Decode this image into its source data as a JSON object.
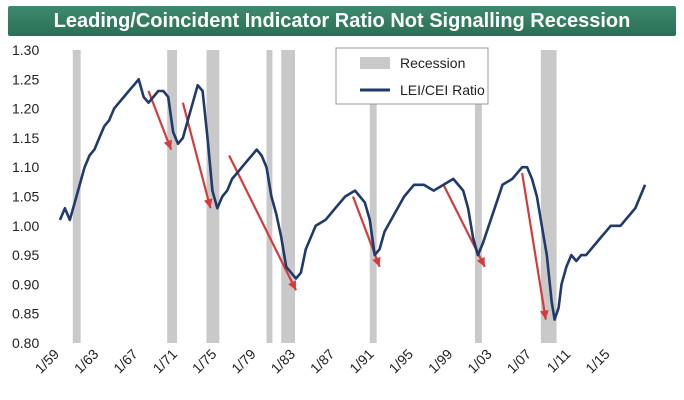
{
  "chart_data": {
    "type": "line",
    "title": "Leading/Coincident Indicator Ratio Not Signalling Recession",
    "ylim": [
      0.8,
      1.3
    ],
    "y_ticks": [
      "1.30",
      "1.25",
      "1.20",
      "1.15",
      "1.10",
      "1.05",
      "1.00",
      "0.95",
      "0.90",
      "0.85",
      "0.80"
    ],
    "x_range": [
      1959.0,
      2019.0
    ],
    "x_ticks": [
      {
        "label": "1/59",
        "x": 1959.0
      },
      {
        "label": "1/63",
        "x": 1963.0
      },
      {
        "label": "1/67",
        "x": 1967.0
      },
      {
        "label": "1/71",
        "x": 1971.0
      },
      {
        "label": "1/75",
        "x": 1975.0
      },
      {
        "label": "1/79",
        "x": 1979.0
      },
      {
        "label": "1/83",
        "x": 1983.0
      },
      {
        "label": "1/87",
        "x": 1987.0
      },
      {
        "label": "1/91",
        "x": 1991.0
      },
      {
        "label": "1/95",
        "x": 1995.0
      },
      {
        "label": "1/99",
        "x": 1999.0
      },
      {
        "label": "1/03",
        "x": 2003.0
      },
      {
        "label": "1/07",
        "x": 2007.0
      },
      {
        "label": "1/11",
        "x": 2011.0
      },
      {
        "label": "1/15",
        "x": 2015.0
      }
    ],
    "recessions": [
      [
        1960.3,
        1961.1
      ],
      [
        1969.9,
        1970.9
      ],
      [
        1973.9,
        1975.2
      ],
      [
        1980.0,
        1980.6
      ],
      [
        1981.5,
        1982.9
      ],
      [
        1990.5,
        1991.2
      ],
      [
        2001.2,
        2001.9
      ],
      [
        2007.9,
        2009.5
      ]
    ],
    "series": [
      {
        "name": "LEI/CEI Ratio",
        "color": "#1f3a6b",
        "x": [
          1959.0,
          1959.5,
          1960.0,
          1960.5,
          1961.0,
          1961.5,
          1962.0,
          1962.5,
          1963.0,
          1963.5,
          1964.0,
          1964.5,
          1965.0,
          1965.5,
          1966.0,
          1966.5,
          1967.0,
          1967.5,
          1968.0,
          1968.5,
          1969.0,
          1969.5,
          1970.0,
          1970.5,
          1971.0,
          1971.5,
          1972.0,
          1972.5,
          1973.0,
          1973.5,
          1974.0,
          1974.5,
          1975.0,
          1975.5,
          1976.0,
          1976.5,
          1977.0,
          1977.5,
          1978.0,
          1978.5,
          1979.0,
          1979.5,
          1980.0,
          1980.5,
          1981.0,
          1981.5,
          1982.0,
          1982.5,
          1983.0,
          1983.5,
          1984.0,
          1985.0,
          1986.0,
          1987.0,
          1988.0,
          1989.0,
          1989.5,
          1990.0,
          1990.5,
          1991.0,
          1991.5,
          1992.0,
          1993.0,
          1994.0,
          1995.0,
          1996.0,
          1997.0,
          1998.0,
          1999.0,
          2000.0,
          2000.5,
          2001.0,
          2001.5,
          2002.0,
          2003.0,
          2004.0,
          2005.0,
          2006.0,
          2006.5,
          2007.0,
          2007.5,
          2008.0,
          2008.5,
          2009.0,
          2009.3,
          2009.7,
          2010.0,
          2010.5,
          2011.0,
          2011.5,
          2012.0,
          2012.5,
          2013.0,
          2013.5,
          2014.0,
          2014.5,
          2015.0,
          2015.5,
          2016.0,
          2016.5,
          2017.0,
          2017.5,
          2018.0,
          2018.5
        ],
        "values": [
          1.01,
          1.03,
          1.01,
          1.04,
          1.07,
          1.1,
          1.12,
          1.13,
          1.15,
          1.17,
          1.18,
          1.2,
          1.21,
          1.22,
          1.23,
          1.24,
          1.25,
          1.22,
          1.21,
          1.22,
          1.23,
          1.23,
          1.22,
          1.16,
          1.14,
          1.15,
          1.18,
          1.21,
          1.24,
          1.23,
          1.15,
          1.06,
          1.03,
          1.05,
          1.06,
          1.08,
          1.09,
          1.1,
          1.11,
          1.12,
          1.13,
          1.12,
          1.1,
          1.05,
          1.02,
          0.98,
          0.93,
          0.92,
          0.91,
          0.92,
          0.96,
          1.0,
          1.01,
          1.03,
          1.05,
          1.06,
          1.05,
          1.04,
          1.01,
          0.95,
          0.96,
          0.99,
          1.02,
          1.05,
          1.07,
          1.07,
          1.06,
          1.07,
          1.08,
          1.06,
          1.03,
          0.98,
          0.95,
          0.97,
          1.02,
          1.07,
          1.08,
          1.1,
          1.1,
          1.08,
          1.05,
          1.0,
          0.95,
          0.87,
          0.84,
          0.86,
          0.9,
          0.93,
          0.95,
          0.94,
          0.95,
          0.95,
          0.96,
          0.97,
          0.98,
          0.99,
          1.0,
          1.0,
          1.0,
          1.01,
          1.02,
          1.03,
          1.05,
          1.07
        ]
      }
    ],
    "arrows": [
      {
        "from": [
          1968.0,
          1.23
        ],
        "to": [
          1970.3,
          1.13
        ]
      },
      {
        "from": [
          1971.5,
          1.21
        ],
        "to": [
          1974.3,
          1.03
        ]
      },
      {
        "from": [
          1976.2,
          1.12
        ],
        "to": [
          1983.0,
          0.89
        ]
      },
      {
        "from": [
          1988.8,
          1.05
        ],
        "to": [
          1991.5,
          0.93
        ]
      },
      {
        "from": [
          1998.0,
          1.07
        ],
        "to": [
          2002.2,
          0.93
        ]
      },
      {
        "from": [
          2006.0,
          1.09
        ],
        "to": [
          2008.4,
          0.84
        ]
      }
    ],
    "legend": {
      "position": "top-center",
      "entries": [
        {
          "label": "Recession",
          "kind": "bar",
          "color": "#c9c9c9"
        },
        {
          "label": "LEI/CEI Ratio",
          "kind": "line",
          "color": "#1f3a6b"
        }
      ]
    },
    "recession_color": "#c9c9c9",
    "arrow_color": "#d63b3b",
    "grid": false
  }
}
